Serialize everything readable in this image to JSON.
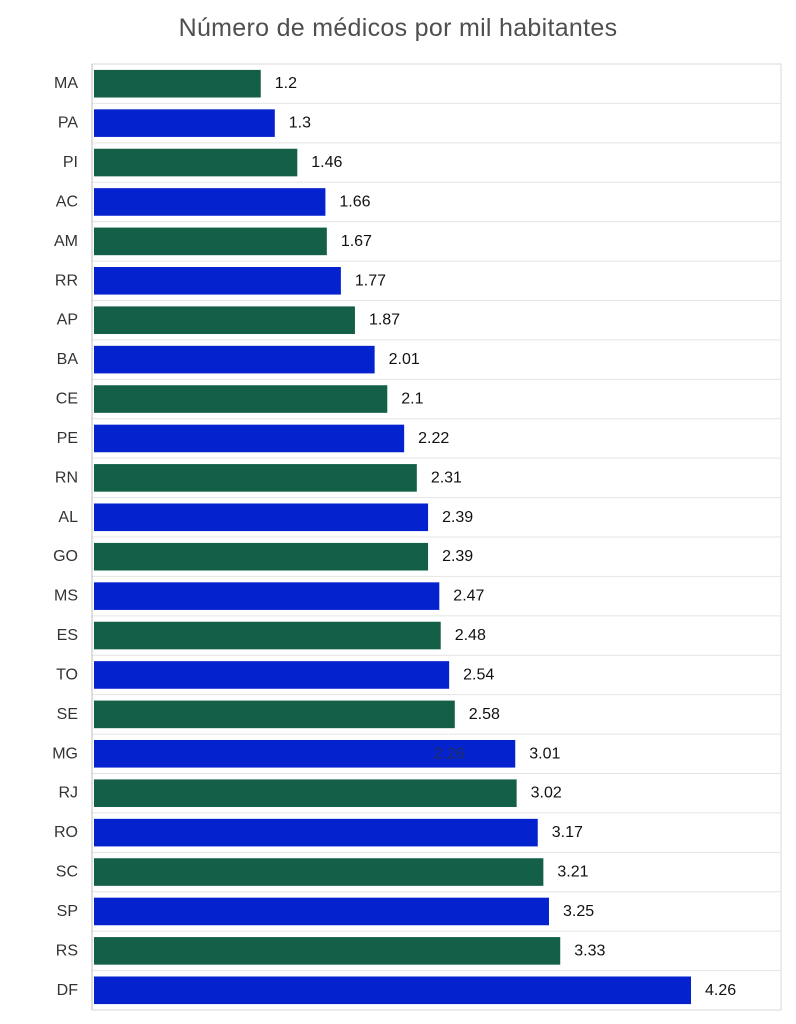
{
  "chart_data": {
    "type": "bar",
    "orientation": "horizontal",
    "title": "Número de médicos por mil habitantes",
    "xlabel": "",
    "ylabel": "",
    "xlim": [
      0,
      4.9
    ],
    "grid": true,
    "categories": [
      "MA",
      "PA",
      "PI",
      "AC",
      "AM",
      "RR",
      "AP",
      "BA",
      "CE",
      "PE",
      "RN",
      "AL",
      "GO",
      "MS",
      "ES",
      "TO",
      "SE",
      "MG",
      "RJ",
      "RO",
      "SC",
      "SP",
      "RS",
      "DF"
    ],
    "values": [
      1.2,
      1.3,
      1.46,
      1.66,
      1.67,
      1.77,
      1.87,
      2.01,
      2.1,
      2.22,
      2.31,
      2.39,
      2.39,
      2.47,
      2.48,
      2.54,
      2.58,
      3.01,
      3.02,
      3.17,
      3.21,
      3.25,
      3.33,
      4.26
    ],
    "value_labels": [
      "1.2",
      "1.3",
      "1.46",
      "1.66",
      "1.67",
      "1.77",
      "1.87",
      "2.01",
      "2.1",
      "2.22",
      "2.31",
      "2.39",
      "2.39",
      "2.47",
      "2.48",
      "2.54",
      "2.58",
      "3.01",
      "3.02",
      "3.17",
      "3.21",
      "3.25",
      "3.33",
      "4.26"
    ],
    "colors": [
      "#135f48",
      "#0522cf"
    ],
    "annotations": [
      {
        "category": "MG",
        "text": "2.26"
      }
    ]
  }
}
